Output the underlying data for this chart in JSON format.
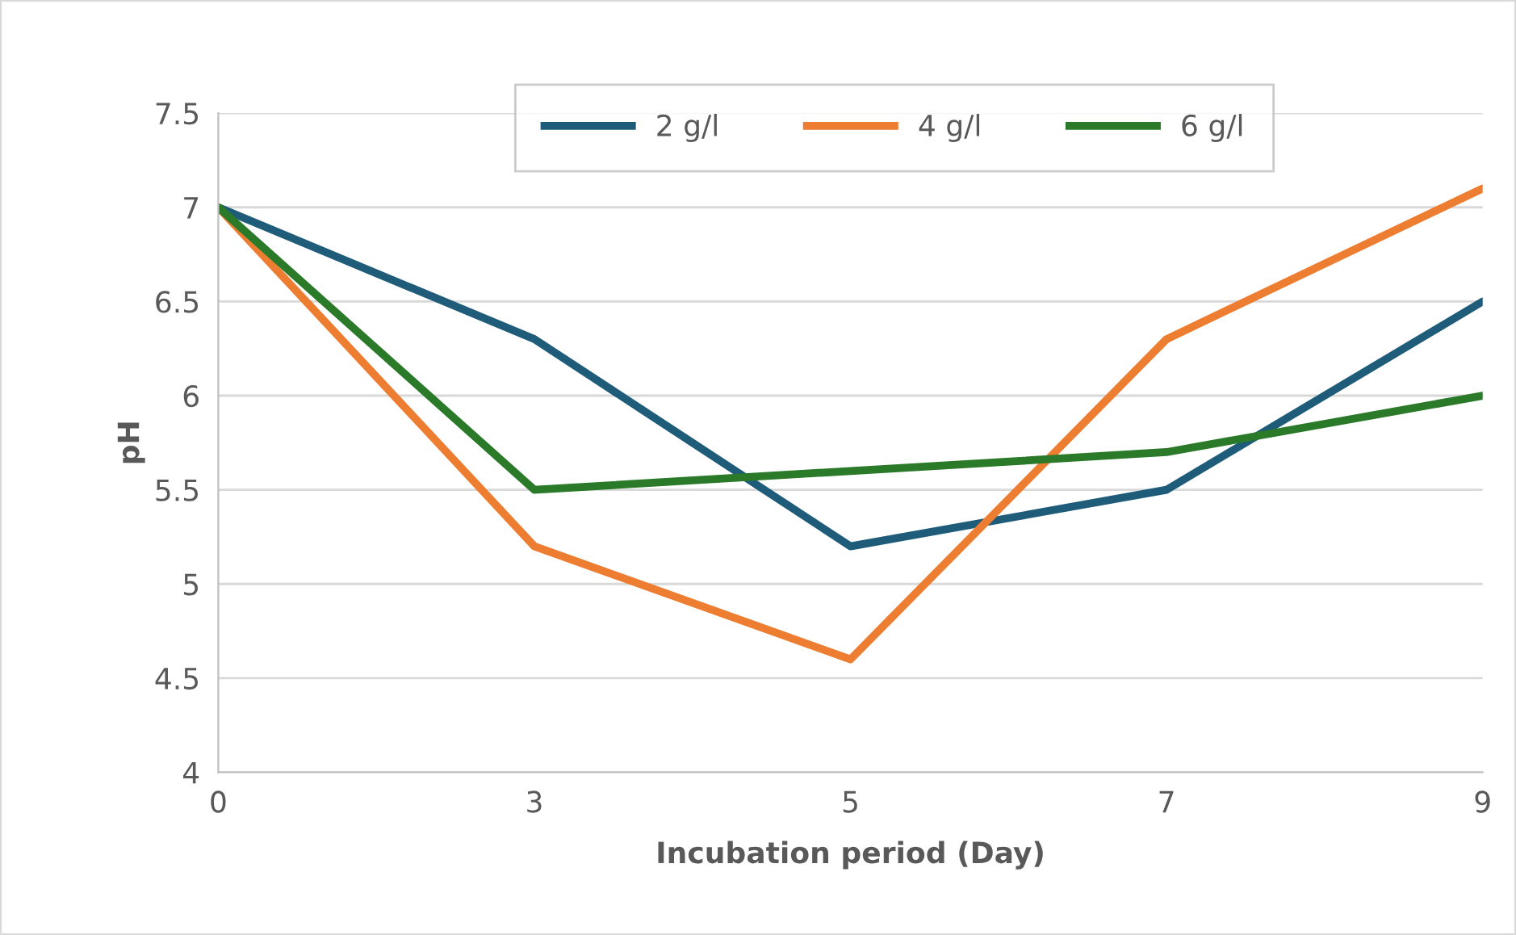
{
  "chart_data": {
    "type": "line",
    "xlabel": "Incubation period (Day)",
    "ylabel": "pH",
    "categories": [
      "0",
      "3",
      "5",
      "7",
      "9"
    ],
    "series": [
      {
        "name": "2 g/l",
        "color": "#1f5c7a",
        "values": [
          7,
          6.3,
          5.2,
          5.5,
          6.5
        ]
      },
      {
        "name": "4 g/l",
        "color": "#ed7d31",
        "values": [
          7,
          5.2,
          4.6,
          6.3,
          7.1
        ]
      },
      {
        "name": "6 g/l",
        "color": "#2a7a2a",
        "values": [
          7,
          5.5,
          5.6,
          5.7,
          6.0
        ]
      }
    ],
    "ylim": [
      4,
      7.5
    ],
    "yticks": [
      4,
      4.5,
      5,
      5.5,
      6,
      6.5,
      7,
      7.5
    ],
    "grid": "y",
    "legend": "top",
    "marker": "none",
    "line_style": "solid"
  }
}
